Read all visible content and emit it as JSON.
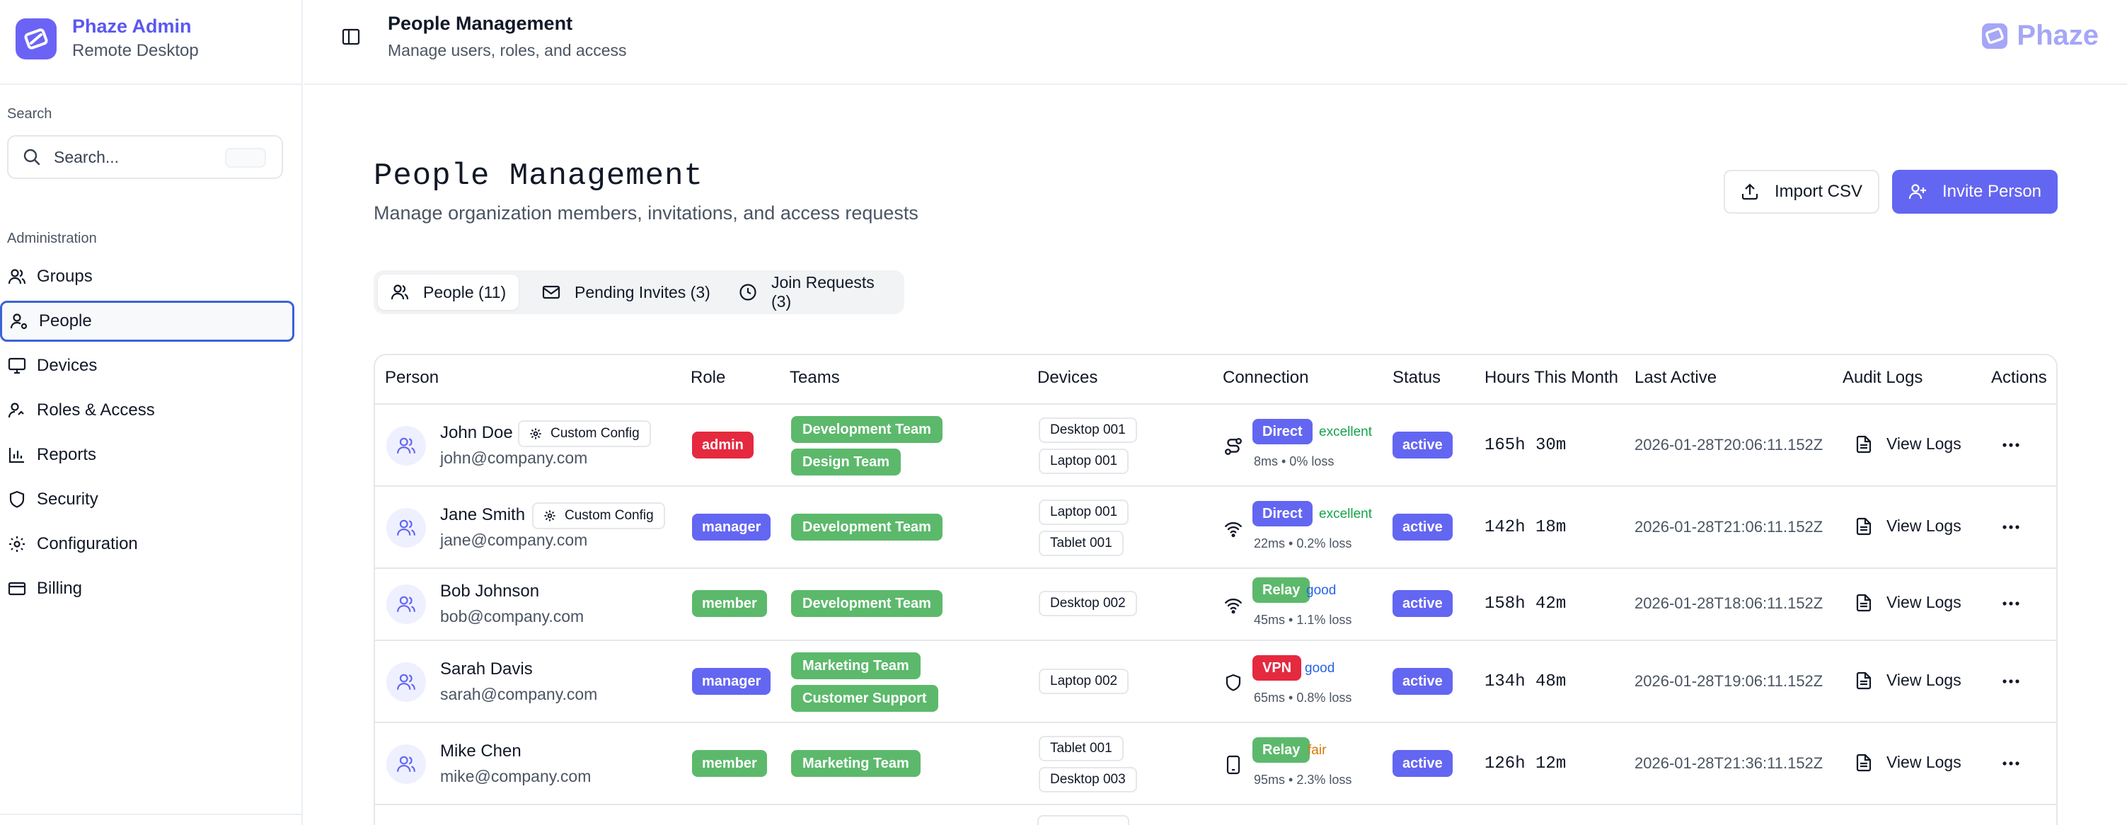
{
  "brand": {
    "title": "Phaze Admin",
    "subtitle": "Remote Desktop",
    "logo_icon": "phaze-logo-icon"
  },
  "sidebar": {
    "search_label": "Search",
    "search_placeholder": "Search...",
    "section_label": "Administration",
    "items": [
      {
        "label": "Groups",
        "icon": "users-icon",
        "active": false
      },
      {
        "label": "People",
        "icon": "user-icon",
        "active": true
      },
      {
        "label": "Devices",
        "icon": "monitor-icon",
        "active": false
      },
      {
        "label": "Roles & Access",
        "icon": "user-key-icon",
        "active": false
      },
      {
        "label": "Reports",
        "icon": "bar-chart-icon",
        "active": false
      },
      {
        "label": "Security",
        "icon": "shield-icon",
        "active": false
      },
      {
        "label": "Configuration",
        "icon": "gear-icon",
        "active": false
      },
      {
        "label": "Billing",
        "icon": "credit-card-icon",
        "active": false
      }
    ]
  },
  "topbar": {
    "title": "People Management",
    "subtitle": "Manage users, roles, and access",
    "logo_text": "Phaze"
  },
  "main": {
    "title": "People Management",
    "subtitle": "Manage organization members, invitations, and access requests",
    "import_label": "Import CSV",
    "invite_label": "Invite Person",
    "tabs": [
      {
        "label": "People (11)",
        "icon": "users-icon",
        "active": true
      },
      {
        "label": "Pending Invites (3)",
        "icon": "mail-icon",
        "active": false
      },
      {
        "label": "Join Requests (3)",
        "icon": "clock-icon",
        "active": false
      }
    ]
  },
  "table": {
    "columns": [
      "Person",
      "Role",
      "Teams",
      "Devices",
      "Connection",
      "Status",
      "Hours This Month",
      "Last Active",
      "Audit Logs",
      "Actions"
    ],
    "view_logs_label": "View Logs",
    "rows": [
      {
        "name": "John Doe",
        "email": "john@company.com",
        "config": "Custom Config",
        "role": "admin",
        "teams": [
          "Development Team",
          "Design Team"
        ],
        "devices": [
          "Desktop 001",
          "Laptop 001"
        ],
        "conn_icon": "route-icon",
        "conn": "Direct",
        "quality": "excellent",
        "latency": "8ms • 0% loss",
        "status": "active",
        "hours": "165h 30m",
        "last_active": "2026-01-28T20:06:11.152Z"
      },
      {
        "name": "Jane Smith",
        "email": "jane@company.com",
        "config": "Custom Config",
        "role": "manager",
        "teams": [
          "Development Team"
        ],
        "devices": [
          "Laptop 001",
          "Tablet 001"
        ],
        "conn_icon": "wifi-icon",
        "conn": "Direct",
        "quality": "excellent",
        "latency": "22ms • 0.2% loss",
        "status": "active",
        "hours": "142h 18m",
        "last_active": "2026-01-28T21:06:11.152Z"
      },
      {
        "name": "Bob Johnson",
        "email": "bob@company.com",
        "config": "",
        "role": "member",
        "teams": [
          "Development Team"
        ],
        "devices": [
          "Desktop 002"
        ],
        "conn_icon": "wifi-icon",
        "conn": "Relay",
        "quality": "good",
        "latency": "45ms • 1.1% loss",
        "status": "active",
        "hours": "158h 42m",
        "last_active": "2026-01-28T18:06:11.152Z"
      },
      {
        "name": "Sarah Davis",
        "email": "sarah@company.com",
        "config": "",
        "role": "manager",
        "teams": [
          "Marketing Team",
          "Customer Support"
        ],
        "devices": [
          "Laptop 002"
        ],
        "conn_icon": "shield-icon",
        "conn": "VPN",
        "quality": "good",
        "latency": "65ms • 0.8% loss",
        "status": "active",
        "hours": "134h 48m",
        "last_active": "2026-01-28T19:06:11.152Z"
      },
      {
        "name": "Mike Chen",
        "email": "mike@company.com",
        "config": "",
        "role": "member",
        "teams": [
          "Marketing Team"
        ],
        "devices": [
          "Tablet 001",
          "Desktop 003"
        ],
        "conn_icon": "smartphone-icon",
        "conn": "Relay",
        "quality": "fair",
        "latency": "95ms • 2.3% loss",
        "status": "active",
        "hours": "126h 12m",
        "last_active": "2026-01-28T21:36:11.152Z"
      }
    ]
  },
  "colors": {
    "accent": "#6366f1",
    "admin": "#e5293f",
    "manager": "#6366f1",
    "member": "#5cb96b",
    "team": "#5cb96b",
    "direct": "#6366f1",
    "relay": "#5cb96b",
    "vpn": "#e5293f",
    "excellent": "#16a34a",
    "good": "#2563eb",
    "fair": "#d97706"
  }
}
